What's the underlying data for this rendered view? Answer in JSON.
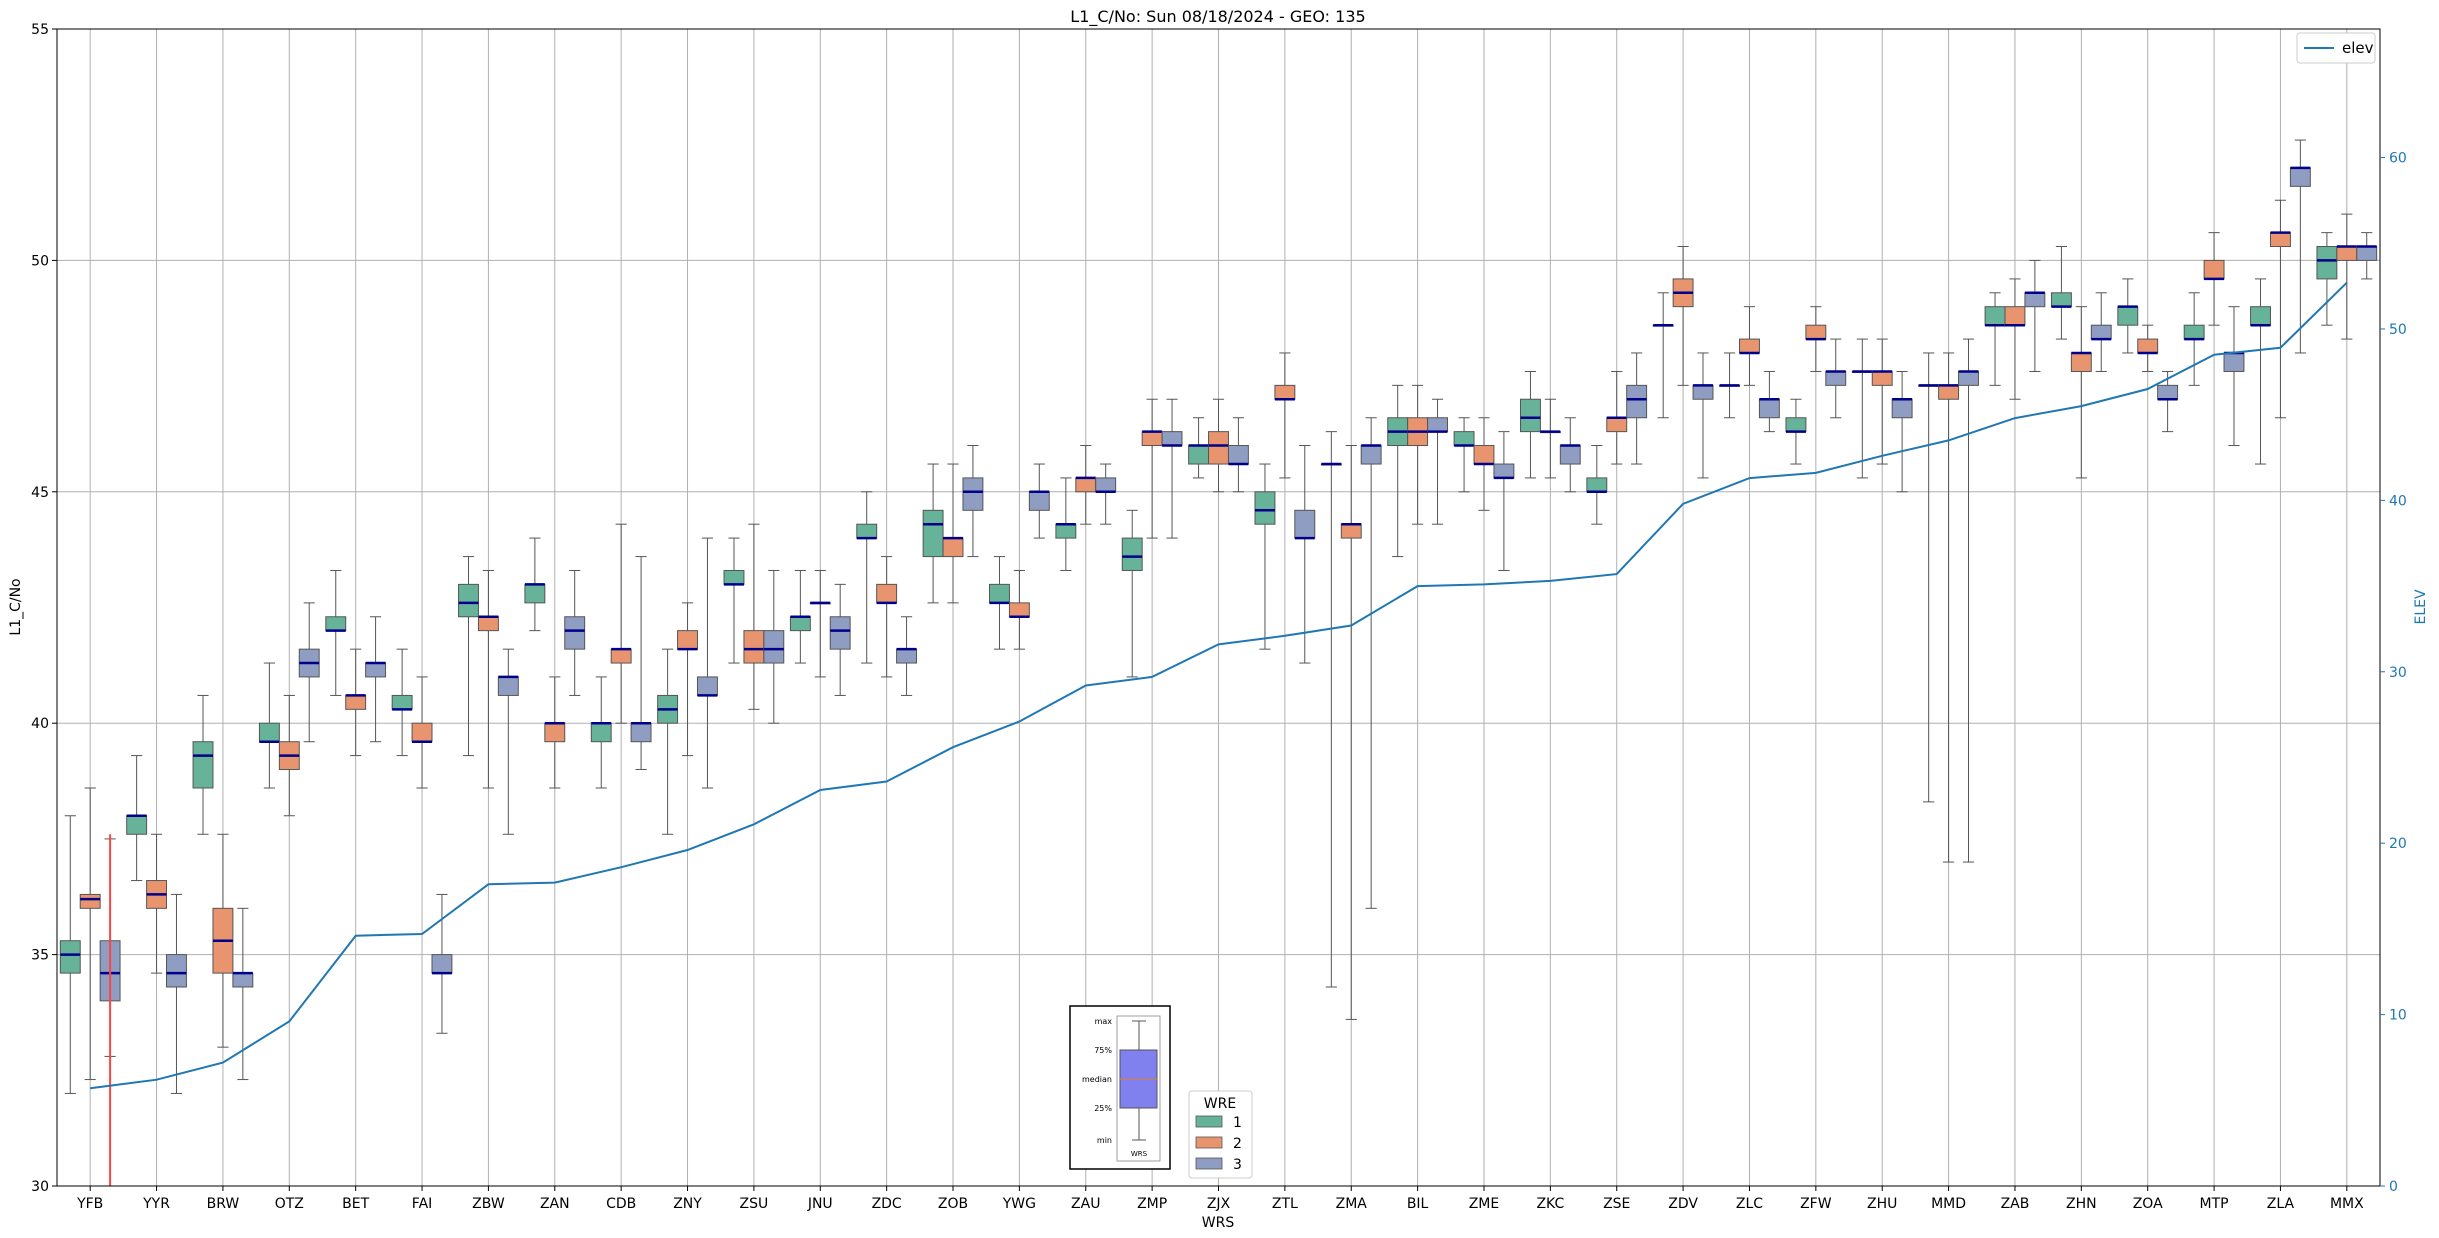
{
  "chart_data": {
    "type": "box",
    "title": "L1_C/No: Sun 08/18/2024 - GEO: 135",
    "xlabel": "WRS",
    "ylabel": "L1_C/No",
    "y2label": "ELEV",
    "ylim": [
      30,
      55
    ],
    "y2lim": [
      0,
      67.5
    ],
    "yticks": [
      30,
      35,
      40,
      45,
      50,
      55
    ],
    "y2ticks": [
      0,
      10,
      20,
      30,
      40,
      50,
      60
    ],
    "grid": true,
    "categories": [
      "YFB",
      "YYR",
      "BRW",
      "OTZ",
      "BET",
      "FAI",
      "ZBW",
      "ZAN",
      "CDB",
      "ZNY",
      "ZSU",
      "JNU",
      "ZDC",
      "ZOB",
      "YWG",
      "ZAU",
      "ZMP",
      "ZJX",
      "ZTL",
      "ZMA",
      "BIL",
      "ZME",
      "ZKC",
      "ZSE",
      "ZDV",
      "ZLC",
      "ZFW",
      "ZHU",
      "MMD",
      "ZAB",
      "ZHN",
      "ZOA",
      "MTP",
      "ZLA",
      "MMX"
    ],
    "series_colors": {
      "1": "#66b39a",
      "2": "#e8956f",
      "3": "#8f9dc2"
    },
    "median_color": "#00008b",
    "boxes": [
      {
        "cat": "YFB",
        "wre": "1",
        "min": 32.0,
        "q1": 34.6,
        "median": 35.0,
        "q3": 35.3,
        "max": 38.0
      },
      {
        "cat": "YFB",
        "wre": "2",
        "min": 32.3,
        "q1": 36.0,
        "median": 36.2,
        "q3": 36.3,
        "max": 38.6
      },
      {
        "cat": "YFB",
        "wre": "3",
        "min": 32.8,
        "q1": 34.0,
        "median": 34.6,
        "q3": 35.3,
        "max": 37.5
      },
      {
        "cat": "YYR",
        "wre": "1",
        "min": 36.6,
        "q1": 37.6,
        "median": 38.0,
        "q3": 38.0,
        "max": 39.3
      },
      {
        "cat": "YYR",
        "wre": "2",
        "min": 34.6,
        "q1": 36.0,
        "median": 36.3,
        "q3": 36.6,
        "max": 37.6
      },
      {
        "cat": "YYR",
        "wre": "3",
        "min": 32.0,
        "q1": 34.3,
        "median": 34.6,
        "q3": 35.0,
        "max": 36.3
      },
      {
        "cat": "BRW",
        "wre": "1",
        "min": 37.6,
        "q1": 38.6,
        "median": 39.3,
        "q3": 39.6,
        "max": 40.6
      },
      {
        "cat": "BRW",
        "wre": "2",
        "min": 33.0,
        "q1": 34.6,
        "median": 35.3,
        "q3": 36.0,
        "max": 37.6
      },
      {
        "cat": "BRW",
        "wre": "3",
        "min": 32.3,
        "q1": 34.3,
        "median": 34.6,
        "q3": 34.6,
        "max": 36.0
      },
      {
        "cat": "OTZ",
        "wre": "1",
        "min": 38.6,
        "q1": 39.6,
        "median": 39.6,
        "q3": 40.0,
        "max": 41.3
      },
      {
        "cat": "OTZ",
        "wre": "2",
        "min": 38.0,
        "q1": 39.0,
        "median": 39.3,
        "q3": 39.6,
        "max": 40.6
      },
      {
        "cat": "OTZ",
        "wre": "3",
        "min": 39.6,
        "q1": 41.0,
        "median": 41.3,
        "q3": 41.6,
        "max": 42.6
      },
      {
        "cat": "BET",
        "wre": "1",
        "min": 40.6,
        "q1": 42.0,
        "median": 42.0,
        "q3": 42.3,
        "max": 43.3
      },
      {
        "cat": "BET",
        "wre": "2",
        "min": 39.3,
        "q1": 40.3,
        "median": 40.6,
        "q3": 40.6,
        "max": 41.6
      },
      {
        "cat": "BET",
        "wre": "3",
        "min": 39.6,
        "q1": 41.0,
        "median": 41.3,
        "q3": 41.3,
        "max": 42.3
      },
      {
        "cat": "FAI",
        "wre": "1",
        "min": 39.3,
        "q1": 40.3,
        "median": 40.3,
        "q3": 40.6,
        "max": 41.6
      },
      {
        "cat": "FAI",
        "wre": "2",
        "min": 38.6,
        "q1": 39.6,
        "median": 39.6,
        "q3": 40.0,
        "max": 41.0
      },
      {
        "cat": "FAI",
        "wre": "3",
        "min": 33.3,
        "q1": 34.6,
        "median": 34.6,
        "q3": 35.0,
        "max": 36.3
      },
      {
        "cat": "ZBW",
        "wre": "1",
        "min": 39.3,
        "q1": 42.3,
        "median": 42.6,
        "q3": 43.0,
        "max": 43.6
      },
      {
        "cat": "ZBW",
        "wre": "2",
        "min": 38.6,
        "q1": 42.0,
        "median": 42.3,
        "q3": 42.3,
        "max": 43.3
      },
      {
        "cat": "ZBW",
        "wre": "3",
        "min": 37.6,
        "q1": 40.6,
        "median": 41.0,
        "q3": 41.0,
        "max": 41.6
      },
      {
        "cat": "ZAN",
        "wre": "1",
        "min": 42.0,
        "q1": 42.6,
        "median": 43.0,
        "q3": 43.0,
        "max": 44.0
      },
      {
        "cat": "ZAN",
        "wre": "2",
        "min": 38.6,
        "q1": 39.6,
        "median": 40.0,
        "q3": 40.0,
        "max": 41.0
      },
      {
        "cat": "ZAN",
        "wre": "3",
        "min": 40.6,
        "q1": 41.6,
        "median": 42.0,
        "q3": 42.3,
        "max": 43.3
      },
      {
        "cat": "CDB",
        "wre": "1",
        "min": 38.6,
        "q1": 39.6,
        "median": 40.0,
        "q3": 40.0,
        "max": 41.0
      },
      {
        "cat": "CDB",
        "wre": "2",
        "min": 40.0,
        "q1": 41.3,
        "median": 41.6,
        "q3": 41.6,
        "max": 44.3
      },
      {
        "cat": "CDB",
        "wre": "3",
        "min": 39.0,
        "q1": 39.6,
        "median": 40.0,
        "q3": 40.0,
        "max": 43.6
      },
      {
        "cat": "ZNY",
        "wre": "1",
        "min": 37.6,
        "q1": 40.0,
        "median": 40.3,
        "q3": 40.6,
        "max": 41.6
      },
      {
        "cat": "ZNY",
        "wre": "2",
        "min": 39.3,
        "q1": 41.6,
        "median": 41.6,
        "q3": 42.0,
        "max": 42.6
      },
      {
        "cat": "ZNY",
        "wre": "3",
        "min": 38.6,
        "q1": 40.6,
        "median": 40.6,
        "q3": 41.0,
        "max": 44.0
      },
      {
        "cat": "ZSU",
        "wre": "1",
        "min": 41.3,
        "q1": 43.0,
        "median": 43.0,
        "q3": 43.3,
        "max": 44.0
      },
      {
        "cat": "ZSU",
        "wre": "2",
        "min": 40.3,
        "q1": 41.3,
        "median": 41.6,
        "q3": 42.0,
        "max": 44.3
      },
      {
        "cat": "ZSU",
        "wre": "3",
        "min": 40.0,
        "q1": 41.3,
        "median": 41.6,
        "q3": 42.0,
        "max": 43.3
      },
      {
        "cat": "JNU",
        "wre": "1",
        "min": 41.3,
        "q1": 42.0,
        "median": 42.3,
        "q3": 42.3,
        "max": 43.3
      },
      {
        "cat": "JNU",
        "wre": "2",
        "min": 41.0,
        "q1": 42.6,
        "median": 42.6,
        "q3": 42.6,
        "max": 43.3
      },
      {
        "cat": "JNU",
        "wre": "3",
        "min": 40.6,
        "q1": 41.6,
        "median": 42.0,
        "q3": 42.3,
        "max": 43.0
      },
      {
        "cat": "ZDC",
        "wre": "1",
        "min": 41.3,
        "q1": 44.0,
        "median": 44.0,
        "q3": 44.3,
        "max": 45.0
      },
      {
        "cat": "ZDC",
        "wre": "2",
        "min": 41.0,
        "q1": 42.6,
        "median": 42.6,
        "q3": 43.0,
        "max": 43.6
      },
      {
        "cat": "ZDC",
        "wre": "3",
        "min": 40.6,
        "q1": 41.3,
        "median": 41.6,
        "q3": 41.6,
        "max": 42.3
      },
      {
        "cat": "ZOB",
        "wre": "1",
        "min": 42.6,
        "q1": 43.6,
        "median": 44.3,
        "q3": 44.6,
        "max": 45.6
      },
      {
        "cat": "ZOB",
        "wre": "2",
        "min": 42.6,
        "q1": 43.6,
        "median": 44.0,
        "q3": 44.0,
        "max": 45.6
      },
      {
        "cat": "ZOB",
        "wre": "3",
        "min": 43.6,
        "q1": 44.6,
        "median": 45.0,
        "q3": 45.3,
        "max": 46.0
      },
      {
        "cat": "YWG",
        "wre": "1",
        "min": 41.6,
        "q1": 42.6,
        "median": 42.6,
        "q3": 43.0,
        "max": 43.6
      },
      {
        "cat": "YWG",
        "wre": "2",
        "min": 41.6,
        "q1": 42.3,
        "median": 42.3,
        "q3": 42.6,
        "max": 43.3
      },
      {
        "cat": "YWG",
        "wre": "3",
        "min": 44.0,
        "q1": 44.6,
        "median": 45.0,
        "q3": 45.0,
        "max": 45.6
      },
      {
        "cat": "ZAU",
        "wre": "1",
        "min": 43.3,
        "q1": 44.0,
        "median": 44.3,
        "q3": 44.3,
        "max": 45.3
      },
      {
        "cat": "ZAU",
        "wre": "2",
        "min": 44.3,
        "q1": 45.0,
        "median": 45.3,
        "q3": 45.3,
        "max": 46.0
      },
      {
        "cat": "ZAU",
        "wre": "3",
        "min": 44.3,
        "q1": 45.0,
        "median": 45.0,
        "q3": 45.3,
        "max": 45.6
      },
      {
        "cat": "ZMP",
        "wre": "1",
        "min": 41.0,
        "q1": 43.3,
        "median": 43.6,
        "q3": 44.0,
        "max": 44.6
      },
      {
        "cat": "ZMP",
        "wre": "2",
        "min": 44.0,
        "q1": 46.0,
        "median": 46.3,
        "q3": 46.3,
        "max": 47.0
      },
      {
        "cat": "ZMP",
        "wre": "3",
        "min": 44.0,
        "q1": 46.0,
        "median": 46.0,
        "q3": 46.3,
        "max": 47.0
      },
      {
        "cat": "ZJX",
        "wre": "1",
        "min": 45.3,
        "q1": 45.6,
        "median": 46.0,
        "q3": 46.0,
        "max": 46.6
      },
      {
        "cat": "ZJX",
        "wre": "2",
        "min": 45.0,
        "q1": 45.6,
        "median": 46.0,
        "q3": 46.3,
        "max": 47.0
      },
      {
        "cat": "ZJX",
        "wre": "3",
        "min": 45.0,
        "q1": 45.6,
        "median": 45.6,
        "q3": 46.0,
        "max": 46.6
      },
      {
        "cat": "ZTL",
        "wre": "1",
        "min": 41.6,
        "q1": 44.3,
        "median": 44.6,
        "q3": 45.0,
        "max": 45.6
      },
      {
        "cat": "ZTL",
        "wre": "2",
        "min": 45.3,
        "q1": 47.0,
        "median": 47.0,
        "q3": 47.3,
        "max": 48.0
      },
      {
        "cat": "ZTL",
        "wre": "3",
        "min": 41.3,
        "q1": 44.0,
        "median": 44.0,
        "q3": 44.6,
        "max": 46.0
      },
      {
        "cat": "ZMA",
        "wre": "1",
        "min": 34.3,
        "q1": 45.6,
        "median": 45.6,
        "q3": 45.6,
        "max": 46.3
      },
      {
        "cat": "ZMA",
        "wre": "2",
        "min": 33.6,
        "q1": 44.0,
        "median": 44.3,
        "q3": 44.3,
        "max": 46.0
      },
      {
        "cat": "ZMA",
        "wre": "3",
        "min": 36.0,
        "q1": 45.6,
        "median": 46.0,
        "q3": 46.0,
        "max": 46.6
      },
      {
        "cat": "BIL",
        "wre": "1",
        "min": 43.6,
        "q1": 46.0,
        "median": 46.3,
        "q3": 46.6,
        "max": 47.3
      },
      {
        "cat": "BIL",
        "wre": "2",
        "min": 44.3,
        "q1": 46.0,
        "median": 46.3,
        "q3": 46.6,
        "max": 47.3
      },
      {
        "cat": "BIL",
        "wre": "3",
        "min": 44.3,
        "q1": 46.3,
        "median": 46.3,
        "q3": 46.6,
        "max": 47.0
      },
      {
        "cat": "ZME",
        "wre": "1",
        "min": 45.0,
        "q1": 46.0,
        "median": 46.0,
        "q3": 46.3,
        "max": 46.6
      },
      {
        "cat": "ZME",
        "wre": "2",
        "min": 44.6,
        "q1": 45.6,
        "median": 45.6,
        "q3": 46.0,
        "max": 46.6
      },
      {
        "cat": "ZME",
        "wre": "3",
        "min": 43.3,
        "q1": 45.3,
        "median": 45.3,
        "q3": 45.6,
        "max": 46.3
      },
      {
        "cat": "ZKC",
        "wre": "1",
        "min": 45.3,
        "q1": 46.3,
        "median": 46.6,
        "q3": 47.0,
        "max": 47.6
      },
      {
        "cat": "ZKC",
        "wre": "2",
        "min": 45.3,
        "q1": 46.3,
        "median": 46.3,
        "q3": 46.3,
        "max": 47.0
      },
      {
        "cat": "ZKC",
        "wre": "3",
        "min": 45.0,
        "q1": 45.6,
        "median": 46.0,
        "q3": 46.0,
        "max": 46.6
      },
      {
        "cat": "ZSE",
        "wre": "1",
        "min": 44.3,
        "q1": 45.0,
        "median": 45.0,
        "q3": 45.3,
        "max": 46.0
      },
      {
        "cat": "ZSE",
        "wre": "2",
        "min": 45.6,
        "q1": 46.3,
        "median": 46.6,
        "q3": 46.6,
        "max": 47.6
      },
      {
        "cat": "ZSE",
        "wre": "3",
        "min": 45.6,
        "q1": 46.6,
        "median": 47.0,
        "q3": 47.3,
        "max": 48.0
      },
      {
        "cat": "ZDV",
        "wre": "1",
        "min": 46.6,
        "q1": 48.6,
        "median": 48.6,
        "q3": 48.6,
        "max": 49.3
      },
      {
        "cat": "ZDV",
        "wre": "2",
        "min": 47.3,
        "q1": 49.0,
        "median": 49.3,
        "q3": 49.6,
        "max": 50.3
      },
      {
        "cat": "ZDV",
        "wre": "3",
        "min": 45.3,
        "q1": 47.0,
        "median": 47.3,
        "q3": 47.3,
        "max": 48.0
      },
      {
        "cat": "ZLC",
        "wre": "1",
        "min": 46.6,
        "q1": 47.3,
        "median": 47.3,
        "q3": 47.3,
        "max": 48.0
      },
      {
        "cat": "ZLC",
        "wre": "2",
        "min": 47.3,
        "q1": 48.0,
        "median": 48.0,
        "q3": 48.3,
        "max": 49.0
      },
      {
        "cat": "ZLC",
        "wre": "3",
        "min": 46.3,
        "q1": 46.6,
        "median": 47.0,
        "q3": 47.0,
        "max": 47.6
      },
      {
        "cat": "ZFW",
        "wre": "1",
        "min": 45.6,
        "q1": 46.3,
        "median": 46.3,
        "q3": 46.6,
        "max": 47.0
      },
      {
        "cat": "ZFW",
        "wre": "2",
        "min": 47.6,
        "q1": 48.3,
        "median": 48.3,
        "q3": 48.6,
        "max": 49.0
      },
      {
        "cat": "ZFW",
        "wre": "3",
        "min": 46.6,
        "q1": 47.3,
        "median": 47.6,
        "q3": 47.6,
        "max": 48.3
      },
      {
        "cat": "ZHU",
        "wre": "1",
        "min": 45.3,
        "q1": 47.6,
        "median": 47.6,
        "q3": 47.6,
        "max": 48.3
      },
      {
        "cat": "ZHU",
        "wre": "2",
        "min": 45.6,
        "q1": 47.3,
        "median": 47.6,
        "q3": 47.6,
        "max": 48.3
      },
      {
        "cat": "ZHU",
        "wre": "3",
        "min": 45.0,
        "q1": 46.6,
        "median": 47.0,
        "q3": 47.0,
        "max": 47.6
      },
      {
        "cat": "MMD",
        "wre": "1",
        "min": 38.3,
        "q1": 47.3,
        "median": 47.3,
        "q3": 47.3,
        "max": 48.0
      },
      {
        "cat": "MMD",
        "wre": "2",
        "min": 37.0,
        "q1": 47.0,
        "median": 47.3,
        "q3": 47.3,
        "max": 48.0
      },
      {
        "cat": "MMD",
        "wre": "3",
        "min": 37.0,
        "q1": 47.3,
        "median": 47.6,
        "q3": 47.6,
        "max": 48.3
      },
      {
        "cat": "ZAB",
        "wre": "1",
        "min": 47.3,
        "q1": 48.6,
        "median": 48.6,
        "q3": 49.0,
        "max": 49.3
      },
      {
        "cat": "ZAB",
        "wre": "2",
        "min": 47.0,
        "q1": 48.6,
        "median": 48.6,
        "q3": 49.0,
        "max": 49.6
      },
      {
        "cat": "ZAB",
        "wre": "3",
        "min": 47.6,
        "q1": 49.0,
        "median": 49.3,
        "q3": 49.3,
        "max": 50.0
      },
      {
        "cat": "ZHN",
        "wre": "1",
        "min": 48.3,
        "q1": 49.0,
        "median": 49.0,
        "q3": 49.3,
        "max": 50.3
      },
      {
        "cat": "ZHN",
        "wre": "2",
        "min": 45.3,
        "q1": 47.6,
        "median": 48.0,
        "q3": 48.0,
        "max": 49.0
      },
      {
        "cat": "ZHN",
        "wre": "3",
        "min": 47.6,
        "q1": 48.3,
        "median": 48.3,
        "q3": 48.6,
        "max": 49.3
      },
      {
        "cat": "ZOA",
        "wre": "1",
        "min": 48.0,
        "q1": 48.6,
        "median": 49.0,
        "q3": 49.0,
        "max": 49.6
      },
      {
        "cat": "ZOA",
        "wre": "2",
        "min": 47.6,
        "q1": 48.0,
        "median": 48.0,
        "q3": 48.3,
        "max": 48.6
      },
      {
        "cat": "ZOA",
        "wre": "3",
        "min": 46.3,
        "q1": 47.0,
        "median": 47.0,
        "q3": 47.3,
        "max": 47.6
      },
      {
        "cat": "MTP",
        "wre": "1",
        "min": 47.3,
        "q1": 48.3,
        "median": 48.3,
        "q3": 48.6,
        "max": 49.3
      },
      {
        "cat": "MTP",
        "wre": "2",
        "min": 48.6,
        "q1": 49.6,
        "median": 49.6,
        "q3": 50.0,
        "max": 50.6
      },
      {
        "cat": "MTP",
        "wre": "3",
        "min": 46.0,
        "q1": 47.6,
        "median": 48.0,
        "q3": 48.0,
        "max": 49.0
      },
      {
        "cat": "ZLA",
        "wre": "1",
        "min": 45.6,
        "q1": 48.6,
        "median": 48.6,
        "q3": 49.0,
        "max": 49.6
      },
      {
        "cat": "ZLA",
        "wre": "2",
        "min": 46.6,
        "q1": 50.3,
        "median": 50.6,
        "q3": 50.6,
        "max": 51.3
      },
      {
        "cat": "ZLA",
        "wre": "3",
        "min": 48.0,
        "q1": 51.6,
        "median": 52.0,
        "q3": 52.0,
        "max": 52.6
      },
      {
        "cat": "MMX",
        "wre": "1",
        "min": 48.6,
        "q1": 49.6,
        "median": 50.0,
        "q3": 50.3,
        "max": 50.6
      },
      {
        "cat": "MMX",
        "wre": "2",
        "min": 48.3,
        "q1": 50.0,
        "median": 50.3,
        "q3": 50.3,
        "max": 51.0
      },
      {
        "cat": "MMX",
        "wre": "3",
        "min": 49.6,
        "q1": 50.0,
        "median": 50.3,
        "q3": 50.3,
        "max": 50.6
      }
    ],
    "elev_series": {
      "name": "elev",
      "color": "#1f77b4",
      "values": [
        5.7,
        6.2,
        7.2,
        9.6,
        14.6,
        14.7,
        17.6,
        17.7,
        18.6,
        19.6,
        21.1,
        23.1,
        23.6,
        25.6,
        27.1,
        29.2,
        29.7,
        31.6,
        32.1,
        32.7,
        35.0,
        35.1,
        35.3,
        35.7,
        39.8,
        41.3,
        41.6,
        42.6,
        43.5,
        44.8,
        45.5,
        46.5,
        48.5,
        48.9,
        52.7
      ]
    },
    "red_marker": {
      "cat": "YFB",
      "offset": 0.3,
      "from": 30,
      "to": 37.6,
      "color": "#ff4444"
    },
    "legend_elev": {
      "label": "elev",
      "placement": "upper right"
    },
    "legend_wre": {
      "title": "WRE",
      "items": [
        "1",
        "2",
        "3"
      ],
      "placement": "lower center"
    },
    "inset_key": {
      "labels": [
        "max",
        "75%",
        "median",
        "25%",
        "min"
      ],
      "xlabel": "WRS",
      "box_color": "#8080ee"
    }
  }
}
